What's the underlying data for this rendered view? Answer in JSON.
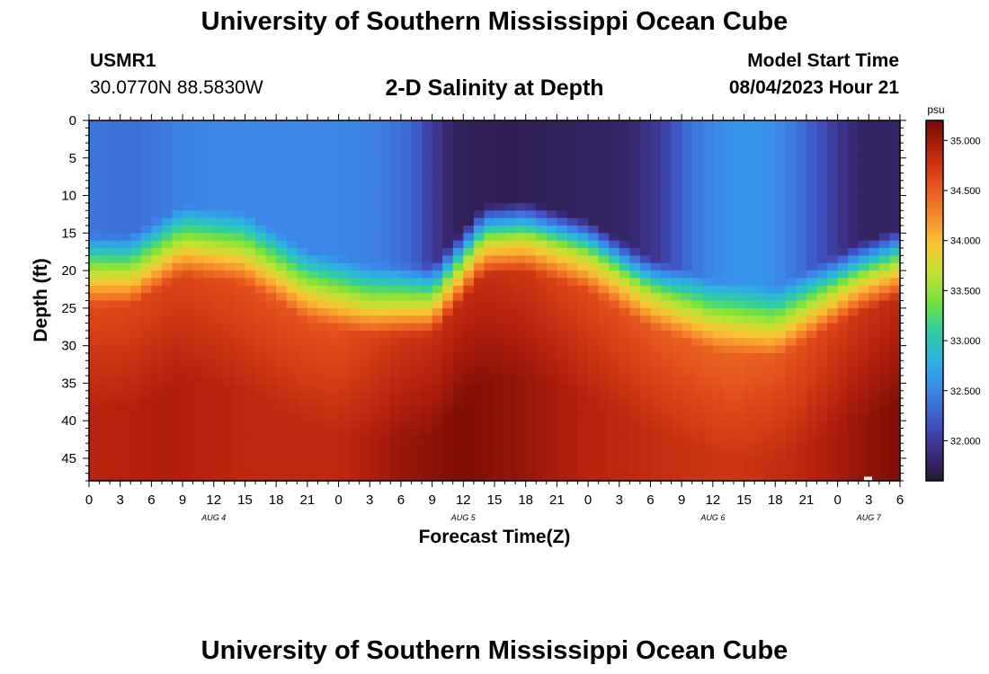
{
  "header": {
    "title": "University of Southern Mississippi Ocean Cube",
    "station_id": "USMR1",
    "coordinates": "30.0770N  88.5830W",
    "plot_title": "2-D Salinity at Depth",
    "model_start_label": "Model Start Time",
    "model_start_value": "08/04/2023 Hour 21"
  },
  "footer": {
    "title": "University of Southern Mississippi Ocean Cube"
  },
  "chart_data": {
    "type": "heatmap",
    "title": "2-D Salinity at Depth",
    "xlabel": "Forecast Time(Z)",
    "ylabel": "Depth (ft)",
    "x_tick_labels": [
      "0",
      "3",
      "6",
      "9",
      "12",
      "15",
      "18",
      "21",
      "0",
      "3",
      "6",
      "9",
      "12",
      "15",
      "18",
      "21",
      "0",
      "3",
      "6",
      "9",
      "12",
      "15",
      "18",
      "21",
      "0",
      "3",
      "6"
    ],
    "x_range_hours": [
      0,
      78
    ],
    "date_labels": [
      {
        "text": "AUG 4",
        "hour": 12
      },
      {
        "text": "AUG 5",
        "hour": 36
      },
      {
        "text": "AUG 6",
        "hour": 60
      },
      {
        "text": "AUG 7",
        "hour": 75
      }
    ],
    "y_tick_labels": [
      "0",
      "5",
      "10",
      "15",
      "20",
      "25",
      "30",
      "35",
      "40",
      "45"
    ],
    "y_range_ft": [
      0,
      48
    ],
    "colorbar": {
      "unit": "psu",
      "range": [
        31.6,
        35.2
      ],
      "tick_labels": [
        "35.000",
        "34.500",
        "34.000",
        "33.500",
        "33.000",
        "32.500",
        "32.000"
      ],
      "tick_values": [
        35.0,
        34.5,
        34.0,
        33.5,
        33.0,
        32.5,
        32.0
      ]
    },
    "grid_step_hours": 1,
    "grid_step_ft": 1,
    "surface_salinity_psu": [
      {
        "hour": 0,
        "value": 32.4
      },
      {
        "hour": 4,
        "value": 32.35
      },
      {
        "hour": 8,
        "value": 32.45
      },
      {
        "hour": 12,
        "value": 32.5
      },
      {
        "hour": 18,
        "value": 32.5
      },
      {
        "hour": 24,
        "value": 32.5
      },
      {
        "hour": 28,
        "value": 32.45
      },
      {
        "hour": 31,
        "value": 32.3
      },
      {
        "hour": 33,
        "value": 32.0
      },
      {
        "hour": 35,
        "value": 31.75
      },
      {
        "hour": 40,
        "value": 31.7
      },
      {
        "hour": 46,
        "value": 31.75
      },
      {
        "hour": 52,
        "value": 31.8
      },
      {
        "hour": 55,
        "value": 32.0
      },
      {
        "hour": 58,
        "value": 32.4
      },
      {
        "hour": 62,
        "value": 32.6
      },
      {
        "hour": 65,
        "value": 32.6
      },
      {
        "hour": 68,
        "value": 32.4
      },
      {
        "hour": 70,
        "value": 32.2
      },
      {
        "hour": 72,
        "value": 31.95
      },
      {
        "hour": 75,
        "value": 31.75
      },
      {
        "hour": 78,
        "value": 31.8
      }
    ],
    "halocline_depth_ft": [
      {
        "hour": 0,
        "value": 20
      },
      {
        "hour": 4,
        "value": 20
      },
      {
        "hour": 9,
        "value": 16
      },
      {
        "hour": 15,
        "value": 17
      },
      {
        "hour": 21,
        "value": 22
      },
      {
        "hour": 27,
        "value": 24
      },
      {
        "hour": 33,
        "value": 24
      },
      {
        "hour": 38,
        "value": 16
      },
      {
        "hour": 42,
        "value": 15.5
      },
      {
        "hour": 48,
        "value": 18
      },
      {
        "hour": 54,
        "value": 23
      },
      {
        "hour": 60,
        "value": 26
      },
      {
        "hour": 66,
        "value": 27
      },
      {
        "hour": 70,
        "value": 24
      },
      {
        "hour": 74,
        "value": 21
      },
      {
        "hour": 78,
        "value": 19
      }
    ],
    "bottom_salinity_psu": [
      {
        "hour": 0,
        "value": 34.9
      },
      {
        "hour": 8,
        "value": 34.95
      },
      {
        "hour": 16,
        "value": 34.85
      },
      {
        "hour": 24,
        "value": 34.85
      },
      {
        "hour": 30,
        "value": 35.05
      },
      {
        "hour": 36,
        "value": 35.15
      },
      {
        "hour": 42,
        "value": 35.05
      },
      {
        "hour": 48,
        "value": 34.9
      },
      {
        "hour": 56,
        "value": 34.8
      },
      {
        "hour": 62,
        "value": 34.75
      },
      {
        "hour": 68,
        "value": 34.85
      },
      {
        "hour": 74,
        "value": 35.05
      },
      {
        "hour": 78,
        "value": 35.15
      }
    ],
    "mid_salinity_psu": 33.6,
    "halocline_thickness_ft": 9.5
  }
}
